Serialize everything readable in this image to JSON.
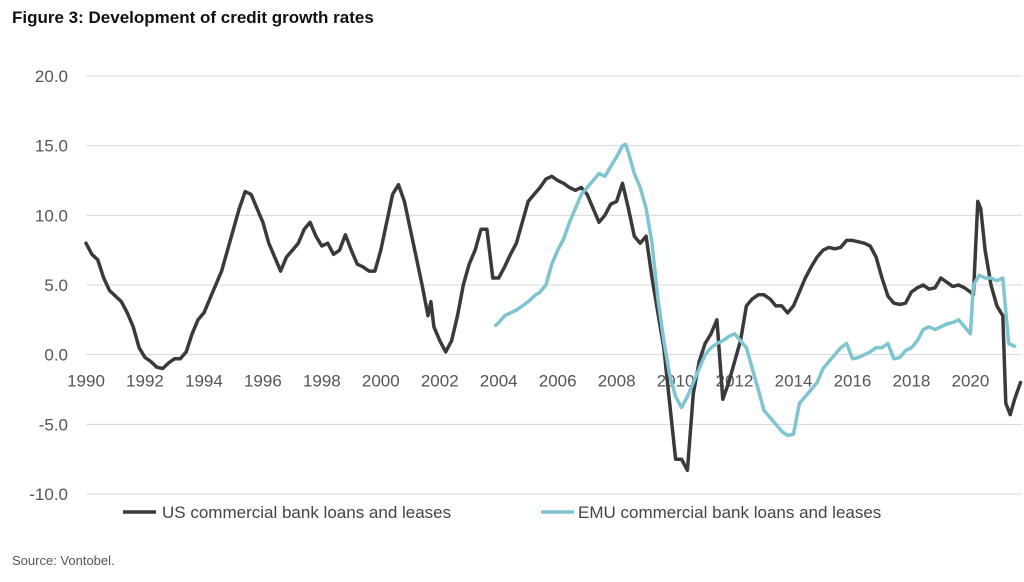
{
  "title": "Figure 3: Development of credit growth rates",
  "source": "Source: Vontobel.",
  "chart_data": {
    "type": "line",
    "title": "Figure 3: Development of credit growth rates",
    "xlabel": "",
    "ylabel": "",
    "xlim": [
      1990,
      2021.75
    ],
    "ylim": [
      -10,
      20
    ],
    "x_ticks": [
      "1990",
      "1992",
      "1994",
      "1996",
      "1998",
      "2000",
      "2002",
      "2004",
      "2006",
      "2008",
      "2010",
      "2012",
      "2014",
      "2016",
      "2018",
      "2020"
    ],
    "y_ticks": [
      "20.0",
      "15.0",
      "10.0",
      "5.0",
      "0.0",
      "-5.0",
      "-10.0"
    ],
    "grid": "horizontal",
    "legend": "bottom",
    "series": [
      {
        "name": "US commercial bank loans and leases",
        "color": "#3a3a3a",
        "points": [
          [
            1990.0,
            8.0
          ],
          [
            1990.2,
            7.2
          ],
          [
            1990.4,
            6.8
          ],
          [
            1990.6,
            5.5
          ],
          [
            1990.8,
            4.6
          ],
          [
            1991.0,
            4.2
          ],
          [
            1991.2,
            3.8
          ],
          [
            1991.4,
            3.0
          ],
          [
            1991.6,
            2.0
          ],
          [
            1991.8,
            0.5
          ],
          [
            1992.0,
            -0.2
          ],
          [
            1992.2,
            -0.5
          ],
          [
            1992.4,
            -0.9
          ],
          [
            1992.6,
            -1.0
          ],
          [
            1992.8,
            -0.6
          ],
          [
            1993.0,
            -0.3
          ],
          [
            1993.2,
            -0.3
          ],
          [
            1993.4,
            0.2
          ],
          [
            1993.6,
            1.5
          ],
          [
            1993.8,
            2.5
          ],
          [
            1994.0,
            3.0
          ],
          [
            1994.2,
            4.0
          ],
          [
            1994.4,
            5.0
          ],
          [
            1994.6,
            6.0
          ],
          [
            1994.8,
            7.5
          ],
          [
            1995.0,
            9.0
          ],
          [
            1995.2,
            10.5
          ],
          [
            1995.4,
            11.7
          ],
          [
            1995.6,
            11.5
          ],
          [
            1995.8,
            10.5
          ],
          [
            1996.0,
            9.5
          ],
          [
            1996.2,
            8.0
          ],
          [
            1996.4,
            7.0
          ],
          [
            1996.6,
            6.0
          ],
          [
            1996.8,
            7.0
          ],
          [
            1997.0,
            7.5
          ],
          [
            1997.2,
            8.0
          ],
          [
            1997.4,
            9.0
          ],
          [
            1997.6,
            9.5
          ],
          [
            1997.8,
            8.5
          ],
          [
            1998.0,
            7.8
          ],
          [
            1998.2,
            8.0
          ],
          [
            1998.4,
            7.2
          ],
          [
            1998.6,
            7.5
          ],
          [
            1998.8,
            8.6
          ],
          [
            1999.0,
            7.5
          ],
          [
            1999.2,
            6.5
          ],
          [
            1999.4,
            6.3
          ],
          [
            1999.6,
            6.0
          ],
          [
            1999.8,
            6.0
          ],
          [
            2000.0,
            7.5
          ],
          [
            2000.2,
            9.5
          ],
          [
            2000.4,
            11.5
          ],
          [
            2000.6,
            12.2
          ],
          [
            2000.8,
            11.0
          ],
          [
            2001.0,
            9.0
          ],
          [
            2001.2,
            7.0
          ],
          [
            2001.4,
            5.0
          ],
          [
            2001.6,
            2.8
          ],
          [
            2001.7,
            3.8
          ],
          [
            2001.8,
            2.0
          ],
          [
            2002.0,
            1.0
          ],
          [
            2002.2,
            0.2
          ],
          [
            2002.4,
            1.0
          ],
          [
            2002.6,
            2.8
          ],
          [
            2002.8,
            5.0
          ],
          [
            2003.0,
            6.5
          ],
          [
            2003.2,
            7.5
          ],
          [
            2003.4,
            9.0
          ],
          [
            2003.6,
            9.0
          ],
          [
            2003.8,
            5.5
          ],
          [
            2004.0,
            5.5
          ],
          [
            2004.2,
            6.3
          ],
          [
            2004.4,
            7.2
          ],
          [
            2004.6,
            8.0
          ],
          [
            2004.8,
            9.5
          ],
          [
            2005.0,
            11.0
          ],
          [
            2005.2,
            11.5
          ],
          [
            2005.4,
            12.0
          ],
          [
            2005.6,
            12.6
          ],
          [
            2005.8,
            12.8
          ],
          [
            2006.0,
            12.5
          ],
          [
            2006.2,
            12.3
          ],
          [
            2006.4,
            12.0
          ],
          [
            2006.6,
            11.8
          ],
          [
            2006.8,
            12.0
          ],
          [
            2007.0,
            11.5
          ],
          [
            2007.2,
            10.5
          ],
          [
            2007.4,
            9.5
          ],
          [
            2007.6,
            10.0
          ],
          [
            2007.8,
            10.8
          ],
          [
            2008.0,
            11.0
          ],
          [
            2008.2,
            12.3
          ],
          [
            2008.4,
            10.5
          ],
          [
            2008.6,
            8.5
          ],
          [
            2008.8,
            8.0
          ],
          [
            2009.0,
            8.5
          ],
          [
            2009.2,
            5.5
          ],
          [
            2009.4,
            3.0
          ],
          [
            2009.6,
            0.5
          ],
          [
            2009.8,
            -3.5
          ],
          [
            2010.0,
            -7.5
          ],
          [
            2010.2,
            -7.5
          ],
          [
            2010.4,
            -8.3
          ],
          [
            2010.6,
            -2.8
          ],
          [
            2010.8,
            -0.5
          ],
          [
            2011.0,
            0.8
          ],
          [
            2011.2,
            1.5
          ],
          [
            2011.4,
            2.5
          ],
          [
            2011.6,
            -3.2
          ],
          [
            2011.8,
            -2.0
          ],
          [
            2012.0,
            -0.5
          ],
          [
            2012.2,
            1.0
          ],
          [
            2012.4,
            3.5
          ],
          [
            2012.6,
            4.0
          ],
          [
            2012.8,
            4.3
          ],
          [
            2013.0,
            4.3
          ],
          [
            2013.2,
            4.0
          ],
          [
            2013.4,
            3.5
          ],
          [
            2013.6,
            3.5
          ],
          [
            2013.8,
            3.0
          ],
          [
            2014.0,
            3.5
          ],
          [
            2014.2,
            4.5
          ],
          [
            2014.4,
            5.5
          ],
          [
            2014.6,
            6.3
          ],
          [
            2014.8,
            7.0
          ],
          [
            2015.0,
            7.5
          ],
          [
            2015.2,
            7.7
          ],
          [
            2015.4,
            7.6
          ],
          [
            2015.6,
            7.7
          ],
          [
            2015.8,
            8.2
          ],
          [
            2016.0,
            8.2
          ],
          [
            2016.2,
            8.1
          ],
          [
            2016.4,
            8.0
          ],
          [
            2016.6,
            7.8
          ],
          [
            2016.8,
            7.0
          ],
          [
            2017.0,
            5.5
          ],
          [
            2017.2,
            4.2
          ],
          [
            2017.4,
            3.7
          ],
          [
            2017.6,
            3.6
          ],
          [
            2017.8,
            3.7
          ],
          [
            2018.0,
            4.5
          ],
          [
            2018.2,
            4.8
          ],
          [
            2018.4,
            5.0
          ],
          [
            2018.6,
            4.7
          ],
          [
            2018.8,
            4.8
          ],
          [
            2019.0,
            5.5
          ],
          [
            2019.2,
            5.2
          ],
          [
            2019.4,
            4.9
          ],
          [
            2019.6,
            5.0
          ],
          [
            2019.8,
            4.8
          ],
          [
            2020.0,
            4.5
          ],
          [
            2020.1,
            4.3
          ],
          [
            2020.25,
            11.0
          ],
          [
            2020.35,
            10.5
          ],
          [
            2020.5,
            7.5
          ],
          [
            2020.7,
            5.0
          ],
          [
            2020.9,
            3.5
          ],
          [
            2021.1,
            2.8
          ],
          [
            2021.2,
            -3.5
          ],
          [
            2021.35,
            -4.3
          ],
          [
            2021.5,
            -3.2
          ],
          [
            2021.7,
            -2.0
          ]
        ]
      },
      {
        "name": "EMU commercial bank loans and leases",
        "color": "#7fc4d1",
        "points": [
          [
            2003.9,
            2.1
          ],
          [
            2004.0,
            2.3
          ],
          [
            2004.2,
            2.8
          ],
          [
            2004.4,
            3.0
          ],
          [
            2004.6,
            3.2
          ],
          [
            2004.8,
            3.5
          ],
          [
            2005.0,
            3.8
          ],
          [
            2005.2,
            4.2
          ],
          [
            2005.4,
            4.5
          ],
          [
            2005.6,
            5.0
          ],
          [
            2005.8,
            6.5
          ],
          [
            2006.0,
            7.5
          ],
          [
            2006.2,
            8.3
          ],
          [
            2006.4,
            9.5
          ],
          [
            2006.6,
            10.5
          ],
          [
            2006.8,
            11.5
          ],
          [
            2007.0,
            12.0
          ],
          [
            2007.2,
            12.5
          ],
          [
            2007.4,
            13.0
          ],
          [
            2007.6,
            12.8
          ],
          [
            2007.8,
            13.5
          ],
          [
            2008.0,
            14.2
          ],
          [
            2008.2,
            15.0
          ],
          [
            2008.3,
            15.1
          ],
          [
            2008.4,
            14.5
          ],
          [
            2008.6,
            13.0
          ],
          [
            2008.8,
            12.0
          ],
          [
            2009.0,
            10.5
          ],
          [
            2009.2,
            8.0
          ],
          [
            2009.4,
            4.0
          ],
          [
            2009.6,
            1.0
          ],
          [
            2009.8,
            -1.5
          ],
          [
            2010.0,
            -3.0
          ],
          [
            2010.2,
            -3.8
          ],
          [
            2010.4,
            -3.0
          ],
          [
            2010.6,
            -2.0
          ],
          [
            2010.8,
            -1.0
          ],
          [
            2011.0,
            0.0
          ],
          [
            2011.2,
            0.5
          ],
          [
            2011.4,
            0.8
          ],
          [
            2011.6,
            1.0
          ],
          [
            2011.8,
            1.3
          ],
          [
            2012.0,
            1.5
          ],
          [
            2012.2,
            1.0
          ],
          [
            2012.4,
            0.5
          ],
          [
            2012.6,
            -1.0
          ],
          [
            2012.8,
            -2.5
          ],
          [
            2013.0,
            -4.0
          ],
          [
            2013.2,
            -4.5
          ],
          [
            2013.4,
            -5.0
          ],
          [
            2013.6,
            -5.5
          ],
          [
            2013.8,
            -5.8
          ],
          [
            2014.0,
            -5.7
          ],
          [
            2014.2,
            -3.5
          ],
          [
            2014.4,
            -3.0
          ],
          [
            2014.6,
            -2.5
          ],
          [
            2014.8,
            -2.0
          ],
          [
            2015.0,
            -1.0
          ],
          [
            2015.2,
            -0.5
          ],
          [
            2015.4,
            0.0
          ],
          [
            2015.6,
            0.5
          ],
          [
            2015.8,
            0.8
          ],
          [
            2016.0,
            -0.3
          ],
          [
            2016.2,
            -0.2
          ],
          [
            2016.4,
            0.0
          ],
          [
            2016.6,
            0.2
          ],
          [
            2016.8,
            0.5
          ],
          [
            2017.0,
            0.5
          ],
          [
            2017.2,
            0.8
          ],
          [
            2017.4,
            -0.3
          ],
          [
            2017.6,
            -0.2
          ],
          [
            2017.8,
            0.3
          ],
          [
            2018.0,
            0.5
          ],
          [
            2018.2,
            1.0
          ],
          [
            2018.4,
            1.8
          ],
          [
            2018.6,
            2.0
          ],
          [
            2018.8,
            1.8
          ],
          [
            2019.0,
            2.0
          ],
          [
            2019.2,
            2.2
          ],
          [
            2019.4,
            2.3
          ],
          [
            2019.6,
            2.5
          ],
          [
            2019.8,
            2.0
          ],
          [
            2020.0,
            1.5
          ],
          [
            2020.1,
            5.0
          ],
          [
            2020.3,
            5.7
          ],
          [
            2020.5,
            5.5
          ],
          [
            2020.7,
            5.5
          ],
          [
            2020.9,
            5.3
          ],
          [
            2021.1,
            5.5
          ],
          [
            2021.3,
            0.8
          ],
          [
            2021.5,
            0.6
          ]
        ]
      }
    ]
  }
}
